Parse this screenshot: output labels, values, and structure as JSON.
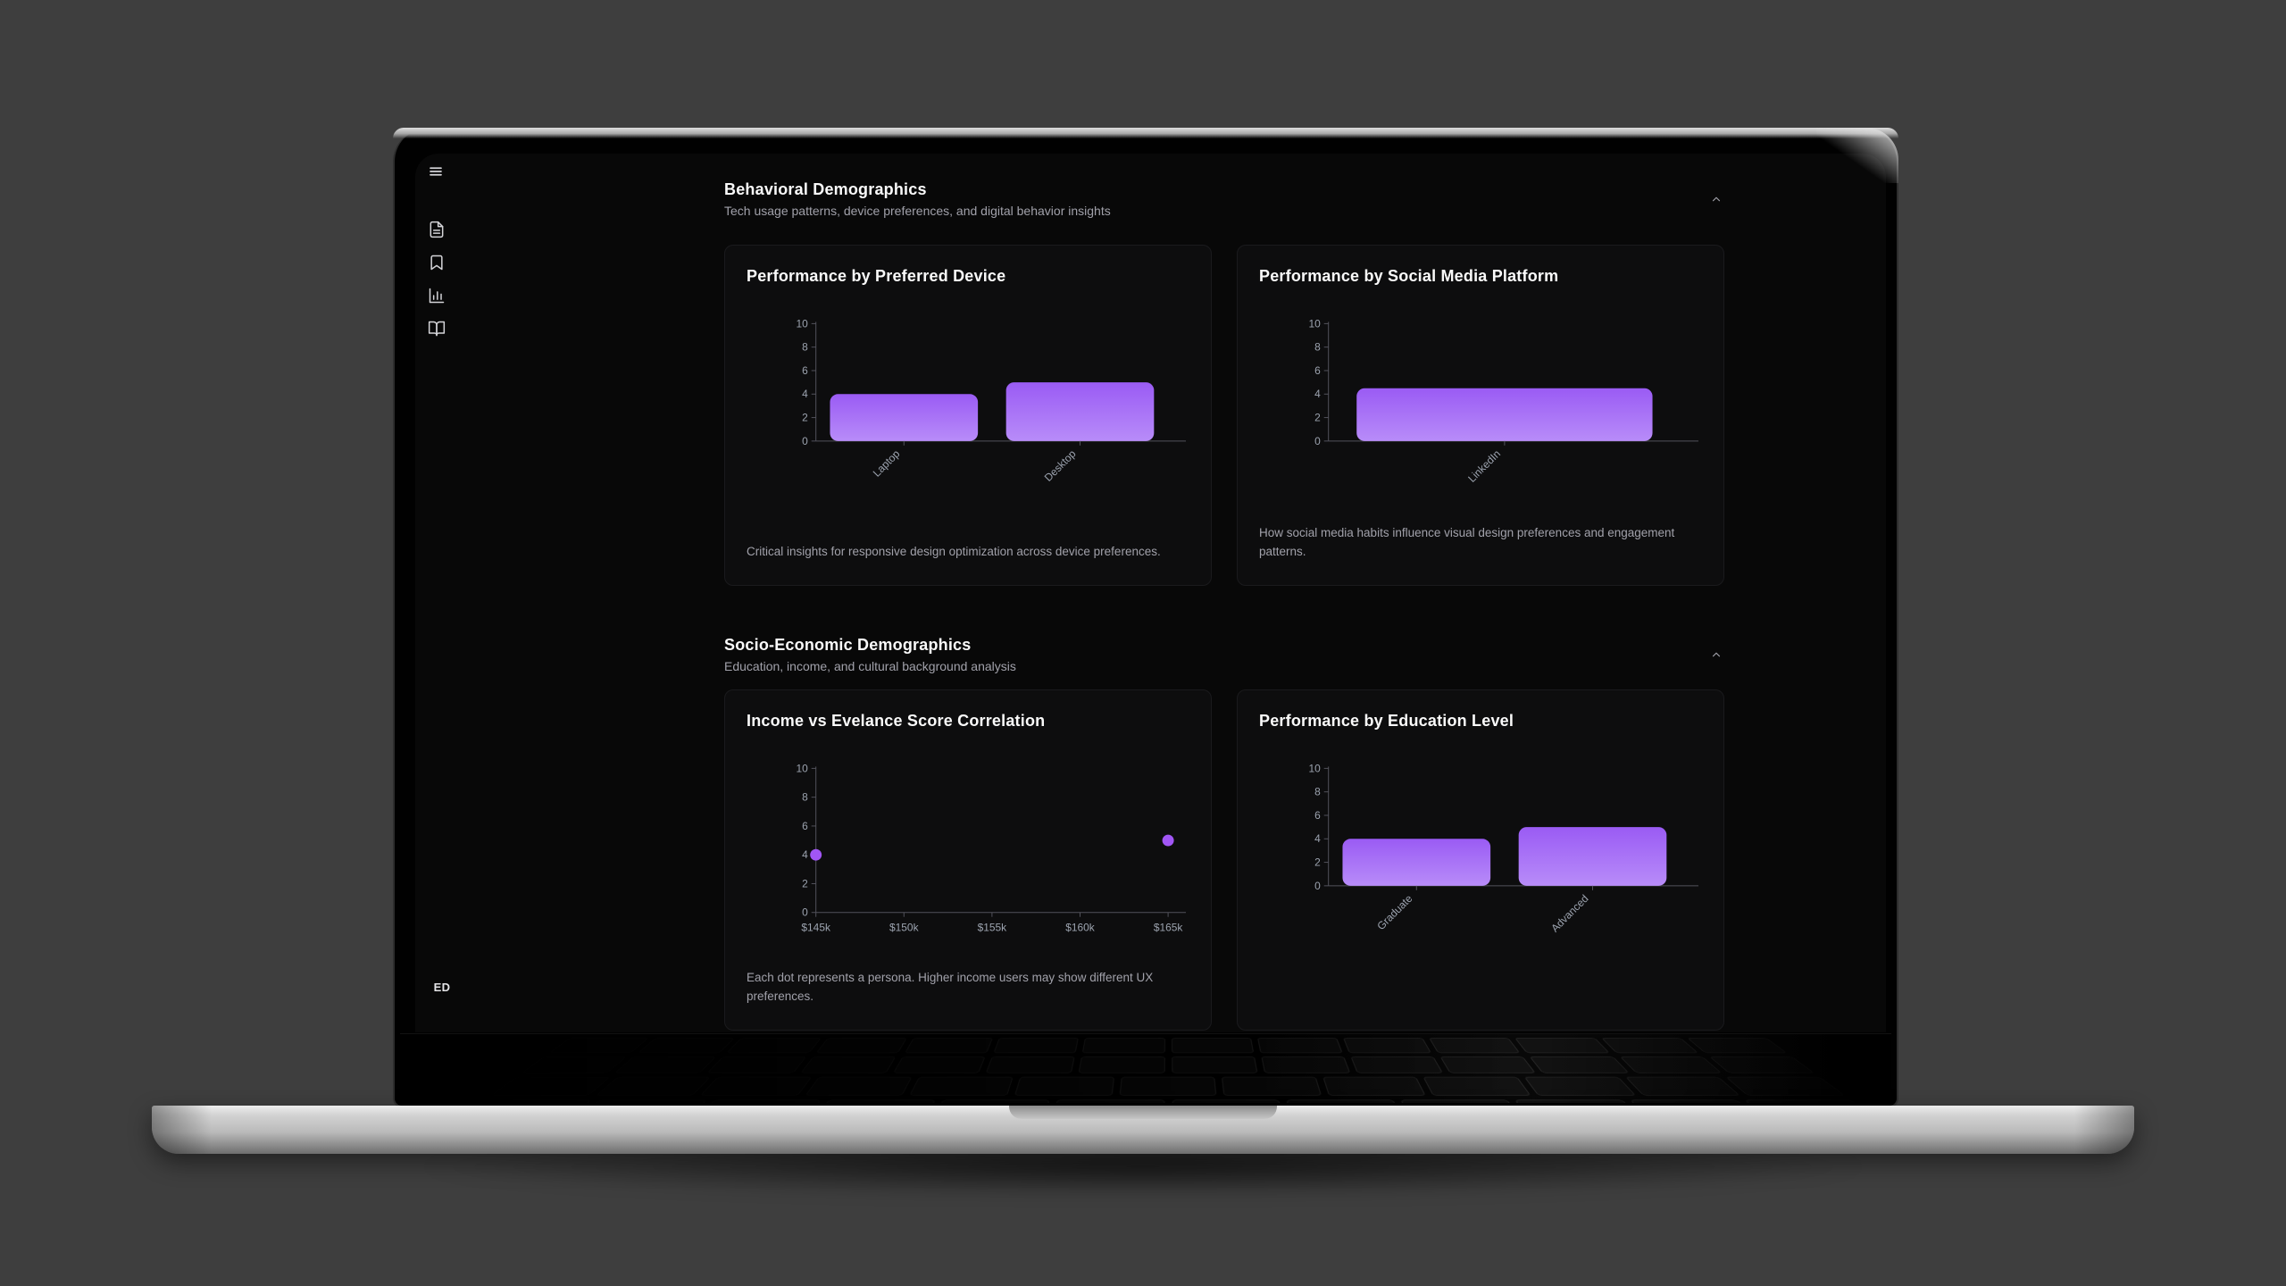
{
  "palette": {
    "page_background": "#3e3e3e",
    "app_background": "#080808",
    "card_background": "#0d0d0e",
    "accent_bar_top": "#9a5bf4",
    "accent_bar_bottom": "#b88cf9",
    "accent_dot": "#a156f5",
    "axis_line": "#52525b",
    "tick_text": "#9ca3af",
    "title_text": "#fafafa",
    "muted_text": "#a1a1aa"
  },
  "sidebar": {
    "menu_icon": "hamburger-icon",
    "nav_icons": [
      "file-text-icon",
      "bookmark-icon",
      "bar-chart-icon",
      "book-open-icon"
    ],
    "avatar_initials": "ED"
  },
  "sections": [
    {
      "title": "Behavioral Demographics",
      "subtitle": "Tech usage patterns, device preferences, and digital behavior insights",
      "collapse_icon": "chevron-up-icon",
      "cards": [
        {
          "title": "Performance by Preferred Device",
          "caption": "Critical insights for responsive design optimization across device preferences."
        },
        {
          "title": "Performance by Social Media Platform",
          "caption": "How social media habits influence visual design preferences and engagement patterns."
        }
      ]
    },
    {
      "title": "Socio-Economic Demographics",
      "subtitle": "Education, income, and cultural background analysis",
      "collapse_icon": "chevron-up-icon",
      "cards": [
        {
          "title": "Income vs Evelance Score Correlation",
          "caption": "Each dot represents a persona. Higher income users may show different UX preferences."
        },
        {
          "title": "Performance by Education Level"
        }
      ]
    }
  ],
  "chart_data": [
    {
      "type": "bar",
      "title": "Performance by Preferred Device",
      "categories": [
        "Laptop",
        "Desktop"
      ],
      "values": [
        4,
        5
      ],
      "ylim": [
        0,
        10
      ],
      "yticks": [
        0,
        2,
        4,
        6,
        8,
        10
      ],
      "xlabel": "",
      "ylabel": "",
      "grid": false,
      "legend": "none"
    },
    {
      "type": "bar",
      "title": "Performance by Social Media Platform",
      "categories": [
        "LinkedIn"
      ],
      "values": [
        4.5
      ],
      "ylim": [
        0,
        10
      ],
      "yticks": [
        0,
        2,
        4,
        6,
        8,
        10
      ],
      "xlabel": "",
      "ylabel": "",
      "grid": false,
      "legend": "none"
    },
    {
      "type": "scatter",
      "title": "Income vs Evelance Score Correlation",
      "xlim": [
        145,
        165
      ],
      "x_ticks": [
        145,
        150,
        155,
        160,
        165
      ],
      "x_tick_labels": [
        "$145k",
        "$150k",
        "$155k",
        "$160k",
        "$165k"
      ],
      "ylim": [
        0,
        10
      ],
      "yticks": [
        0,
        2,
        4,
        6,
        8,
        10
      ],
      "points": [
        [
          145,
          4
        ],
        [
          165,
          5
        ]
      ],
      "xlabel": "",
      "ylabel": "",
      "grid": false,
      "legend": "none"
    },
    {
      "type": "bar",
      "title": "Performance by Education Level",
      "categories": [
        "Graduate",
        "Advanced"
      ],
      "values": [
        4,
        5
      ],
      "ylim": [
        0,
        10
      ],
      "yticks": [
        0,
        2,
        4,
        6,
        8,
        10
      ],
      "xlabel": "",
      "ylabel": "",
      "grid": false,
      "legend": "none"
    }
  ]
}
